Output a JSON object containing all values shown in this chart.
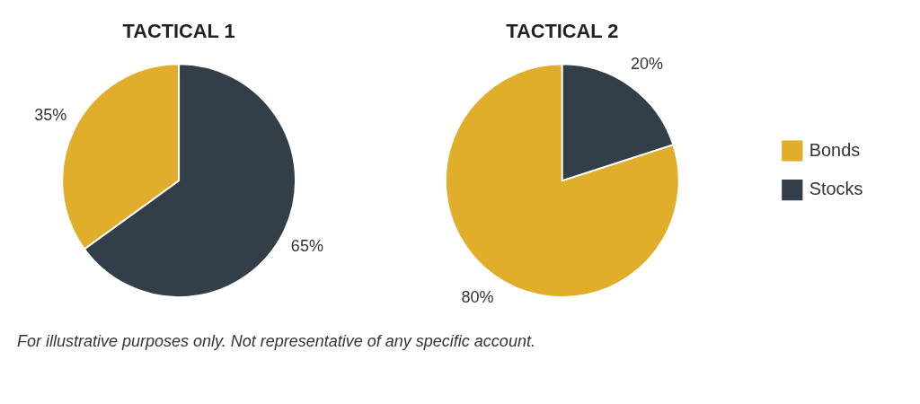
{
  "chart_data": [
    {
      "type": "pie",
      "title": "TACTICAL 1",
      "categories": [
        null,
        null
      ],
      "values": [
        35,
        65
      ],
      "colors": [
        "#e0ae2a",
        "#323e48"
      ],
      "value_labels": [
        "35%",
        "65%"
      ],
      "legend": false,
      "annotations": [
        "For illustrative purposes only. Not representative of any specific account."
      ]
    },
    {
      "type": "pie",
      "title": "TACTICAL 2",
      "categories": [
        "Bonds",
        "Stocks"
      ],
      "values": [
        80,
        20
      ],
      "colors": [
        "#e0ae2a",
        "#323e48"
      ],
      "value_labels": [
        "80%",
        "20%"
      ],
      "legend": "right"
    }
  ]
}
